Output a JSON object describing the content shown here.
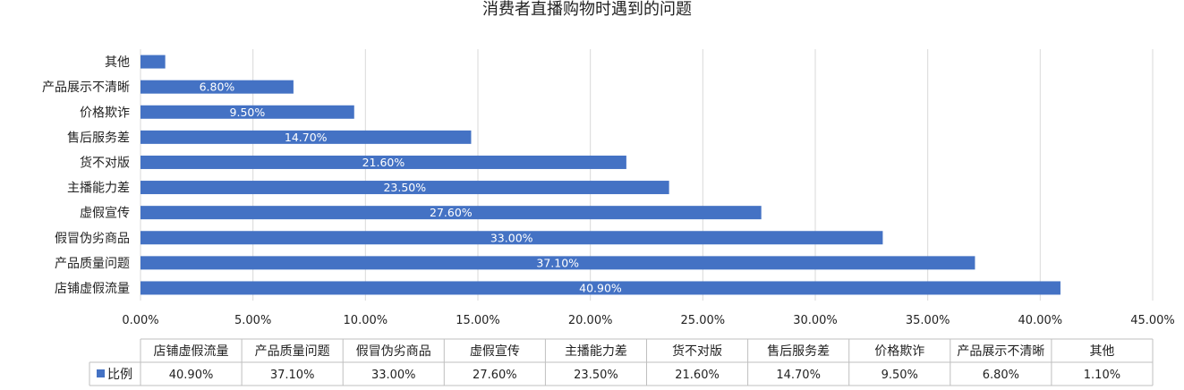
{
  "chart_data": {
    "type": "bar",
    "orientation": "horizontal",
    "title": "消费者直播购物时遇到的问题",
    "categories": [
      "店铺虚假流量",
      "产品质量问题",
      "假冒伪劣商品",
      "虚假宣传",
      "主播能力差",
      "货不对版",
      "售后服务差",
      "价格欺诈",
      "产品展示不清晰",
      "其他"
    ],
    "series": [
      {
        "name": "比例",
        "values": [
          40.9,
          37.1,
          33.0,
          27.6,
          23.5,
          21.6,
          14.7,
          9.5,
          6.8,
          1.1
        ],
        "color": "#4472c4"
      }
    ],
    "data_labels": [
      "40.90%",
      "37.10%",
      "33.00%",
      "27.60%",
      "23.50%",
      "21.60%",
      "14.70%",
      "9.50%",
      "6.80%",
      ""
    ],
    "table_values": [
      "40.90%",
      "37.10%",
      "33.00%",
      "27.60%",
      "23.50%",
      "21.60%",
      "14.70%",
      "9.50%",
      "6.80%",
      "1.10%"
    ],
    "x_ticks": [
      "0.00%",
      "5.00%",
      "10.00%",
      "15.00%",
      "20.00%",
      "25.00%",
      "30.00%",
      "35.00%",
      "40.00%",
      "45.00%"
    ],
    "xlim": [
      0,
      45
    ],
    "grid": true,
    "legend": "data-table"
  }
}
